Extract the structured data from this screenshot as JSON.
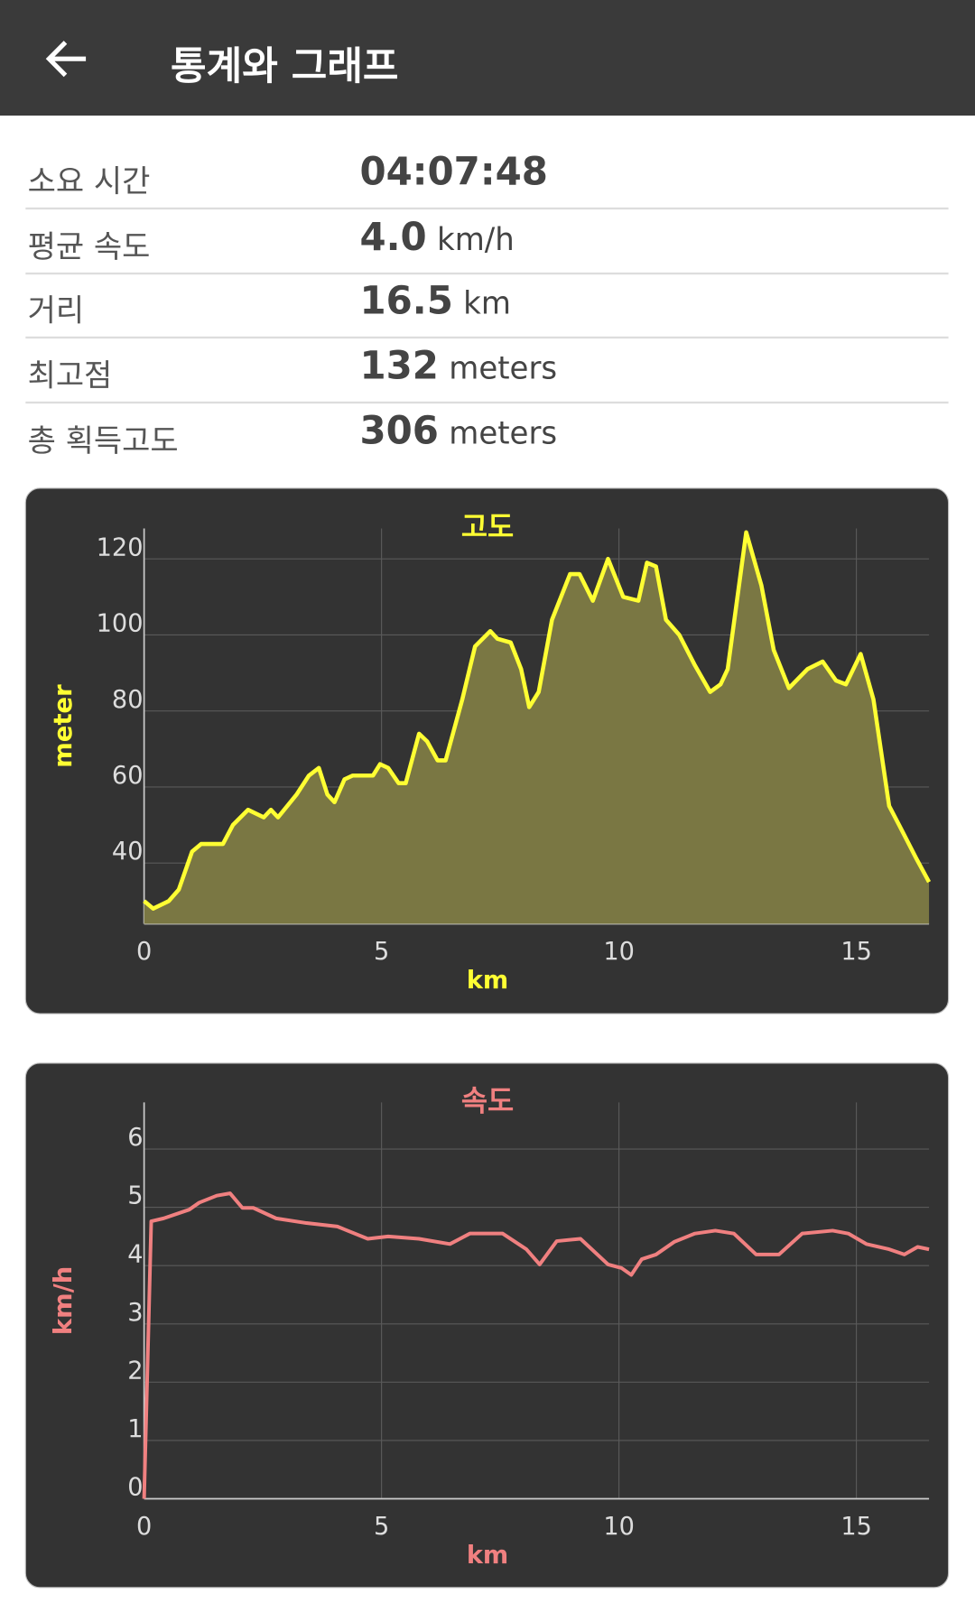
{
  "header": {
    "title": "통계와 그래프"
  },
  "stats": [
    {
      "label": "소요 시간",
      "value": "04:07:48"
    },
    {
      "label": "평균 속도",
      "value": "4.0",
      "unit": "km/h"
    },
    {
      "label": "거리",
      "value": "16.5",
      "unit": "km"
    },
    {
      "label": "최고점",
      "value": "132",
      "unit": "meters"
    },
    {
      "label": "총 획득고도",
      "value": "306",
      "unit": "meters"
    }
  ],
  "chart_data": [
    {
      "type": "area",
      "title": "고도",
      "x_label": "km",
      "y_label": "meter",
      "color": "#ffff33",
      "fill": "#7a7743",
      "x": [
        0,
        0.19,
        0.52,
        0.73,
        1.01,
        1.2,
        1.66,
        1.87,
        2.19,
        2.52,
        2.67,
        2.82,
        3.21,
        3.47,
        3.68,
        3.86,
        4.01,
        4.22,
        4.39,
        4.82,
        4.97,
        5.14,
        5.36,
        5.51,
        5.79,
        5.96,
        6.18,
        6.35,
        6.7,
        6.97,
        7.29,
        7.44,
        7.72,
        7.94,
        8.11,
        8.31,
        8.59,
        8.97,
        9.17,
        9.45,
        9.77,
        10.09,
        10.41,
        10.59,
        10.78,
        10.99,
        11.27,
        11.6,
        11.92,
        12.14,
        12.29,
        12.68,
        13.0,
        13.26,
        13.58,
        13.97,
        14.29,
        14.57,
        14.78,
        15.09,
        15.36,
        15.69,
        15.9,
        16.27,
        16.53
      ],
      "values": [
        30,
        28,
        30,
        33,
        43,
        45,
        45,
        50,
        54,
        52,
        54,
        52,
        58,
        63,
        65,
        58,
        56,
        62,
        63,
        63,
        66,
        65,
        61,
        61,
        74,
        72,
        67,
        67,
        83,
        97,
        101,
        99,
        98,
        91,
        81,
        85,
        104,
        116,
        116,
        109,
        120,
        110,
        109,
        119,
        118,
        104,
        100,
        92,
        85,
        87,
        91,
        127,
        113,
        96,
        86,
        91,
        93,
        88,
        87,
        95,
        83,
        55,
        50,
        41,
        35
      ],
      "xlim": [
        0,
        16.53
      ],
      "ylim": [
        24,
        128
      ],
      "xticks": [
        0,
        5,
        10,
        15
      ],
      "yticks": [
        40,
        60,
        80,
        100,
        120
      ],
      "grid": true
    },
    {
      "type": "line",
      "title": "속도",
      "x_label": "km",
      "y_label": "km/h",
      "color": "#f08080",
      "x": [
        0,
        0.15,
        0.41,
        0.95,
        1.16,
        1.53,
        1.81,
        2.07,
        2.3,
        2.78,
        3.42,
        4.07,
        4.71,
        5.14,
        5.79,
        6.44,
        6.86,
        7.55,
        8.05,
        8.33,
        8.69,
        9.19,
        9.77,
        10.05,
        10.26,
        10.48,
        10.78,
        11.17,
        11.6,
        12.03,
        12.42,
        12.89,
        13.37,
        13.86,
        14.5,
        14.83,
        15.21,
        15.69,
        16.01,
        16.29,
        16.53
      ],
      "values": [
        0,
        4.76,
        4.81,
        4.96,
        5.08,
        5.2,
        5.24,
        4.99,
        4.99,
        4.81,
        4.73,
        4.67,
        4.46,
        4.5,
        4.46,
        4.37,
        4.55,
        4.55,
        4.28,
        4.02,
        4.42,
        4.46,
        4.02,
        3.96,
        3.84,
        4.11,
        4.19,
        4.41,
        4.55,
        4.6,
        4.55,
        4.19,
        4.19,
        4.55,
        4.6,
        4.55,
        4.37,
        4.28,
        4.19,
        4.32,
        4.28
      ],
      "xlim": [
        0,
        16.53
      ],
      "ylim": [
        0,
        6.8
      ],
      "xticks": [
        0,
        5,
        10,
        15
      ],
      "yticks": [
        0,
        1,
        2,
        3,
        4,
        5,
        6
      ],
      "grid": true
    }
  ]
}
